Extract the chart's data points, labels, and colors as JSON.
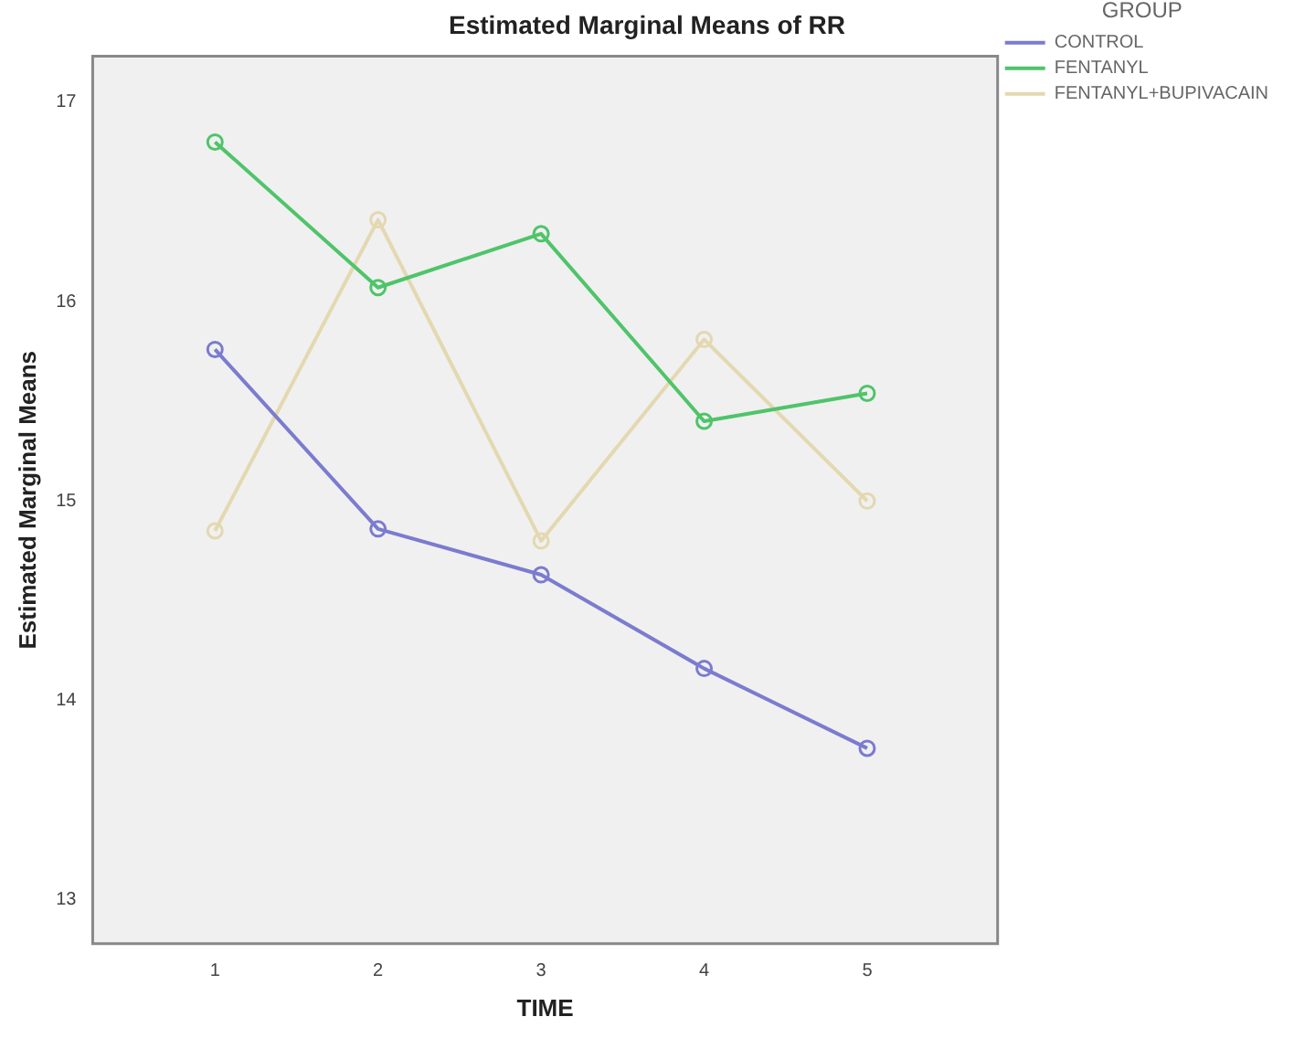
{
  "chart_data": {
    "type": "line",
    "title": "Estimated Marginal Means of RR",
    "xlabel": "TIME",
    "ylabel": "Estimated Marginal Means",
    "legend_title": "GROUP",
    "legend": "top right",
    "grid": false,
    "marker": "circle",
    "line_style": "solid",
    "x": [
      1,
      2,
      3,
      4,
      5
    ],
    "xlim": [
      0.25,
      5.8
    ],
    "xticks": [
      1,
      2,
      3,
      4,
      5
    ],
    "ylim": [
      12.78,
      17.23
    ],
    "yticks": [
      13,
      14,
      15,
      16,
      17
    ],
    "series": [
      {
        "name": "CONTROL",
        "color": "#7b7bd0",
        "values": [
          15.76,
          14.86,
          14.63,
          14.16,
          13.76
        ]
      },
      {
        "name": "FENTANYL",
        "color": "#4fc46a",
        "values": [
          16.8,
          16.07,
          16.34,
          15.4,
          15.54
        ]
      },
      {
        "name": "FENTANYL+BUPIVACAIN",
        "color": "#e3d8b0",
        "values": [
          14.85,
          16.41,
          14.8,
          15.81,
          15.0
        ]
      }
    ]
  }
}
